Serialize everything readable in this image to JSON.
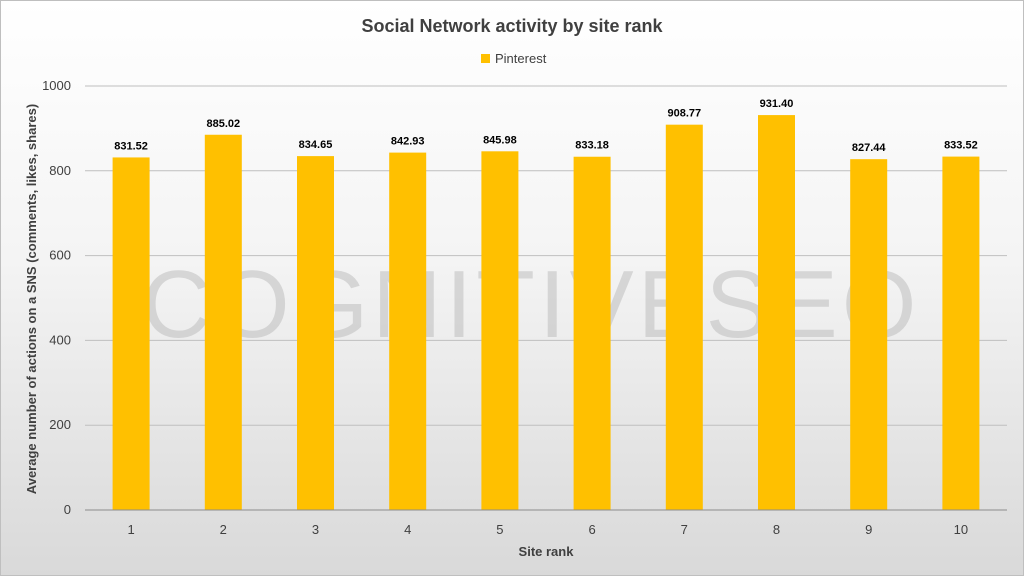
{
  "chart_data": {
    "type": "bar",
    "title": "Social Network activity by site rank",
    "xlabel": "Site rank",
    "ylabel": "Average number of actions on a SNS (comments, likes, shares)",
    "categories": [
      "1",
      "2",
      "3",
      "4",
      "5",
      "6",
      "7",
      "8",
      "9",
      "10"
    ],
    "series": [
      {
        "name": "Pinterest",
        "values": [
          831.52,
          885.02,
          834.65,
          842.93,
          845.98,
          833.18,
          908.77,
          931.4,
          827.44,
          833.52
        ],
        "labels": [
          "831.52",
          "885.02",
          "834.65",
          "842.93",
          "845.98",
          "833.18",
          "908.77",
          "931.40",
          "827.44",
          "833.52"
        ],
        "color": "#FFC000"
      }
    ],
    "ylim": [
      0,
      1000
    ],
    "yticks": [
      0,
      200,
      400,
      600,
      800,
      1000
    ],
    "grid": true,
    "legend_position": "top",
    "watermark": "COGNITIVESEO"
  }
}
